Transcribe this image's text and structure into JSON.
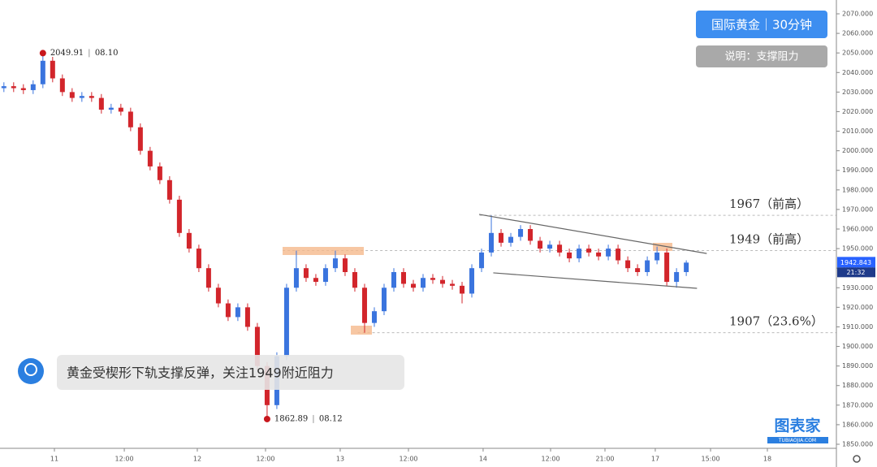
{
  "chart_data": {
    "type": "candlestick",
    "title": "国际黄金｜30分钟",
    "subtitle": "说明：支撑阻力",
    "comment": "黄金受楔形下轨支撑反弹，关注1949附近阻力",
    "watermark": "图表家",
    "watermark_url": "TUBIAOJIA.COM",
    "countdown": "21:32",
    "up_color": "#3a74de",
    "down_color": "#d2252b",
    "x": [
      0,
      1,
      2,
      3,
      4,
      5,
      6,
      7,
      8,
      9,
      10,
      11,
      12,
      13,
      14,
      15,
      16,
      17,
      18,
      19,
      20,
      21,
      22,
      23,
      24,
      25,
      26,
      27,
      28,
      29,
      30,
      31,
      32,
      33,
      34,
      35,
      36,
      37,
      38,
      39,
      40,
      41,
      42,
      43,
      44,
      45,
      46,
      47,
      48,
      49,
      50,
      51,
      52,
      53,
      54,
      55,
      56,
      57,
      58,
      59,
      60,
      61,
      62,
      63,
      64,
      65,
      66,
      67,
      68,
      69,
      70
    ],
    "open": [
      2032,
      2033,
      2032,
      2031,
      2034,
      2046,
      2037,
      2030,
      2027,
      2028,
      2027,
      2021,
      2022,
      2020,
      2012,
      2000,
      1992,
      1985,
      1975,
      1958,
      1950,
      1940,
      1930,
      1922,
      1915,
      1920,
      1910,
      1890,
      1870,
      1895,
      1930,
      1940,
      1935,
      1933,
      1940,
      1945,
      1938,
      1930,
      1912,
      1918,
      1930,
      1938,
      1932,
      1930,
      1935,
      1934,
      1932,
      1931,
      1927,
      1940,
      1948,
      1958,
      1953,
      1956,
      1960,
      1954,
      1950,
      1952,
      1948,
      1945,
      1950,
      1948,
      1946,
      1950,
      1944,
      1940,
      1938,
      1944,
      1948,
      1933,
      1938
    ],
    "high": [
      2035,
      2035,
      2034,
      2036,
      2049.91,
      2048,
      2039,
      2032,
      2030,
      2030,
      2029,
      2024,
      2024,
      2022,
      2014,
      2002,
      1994,
      1987,
      1977,
      1960,
      1952,
      1942,
      1932,
      1924,
      1922,
      1922,
      1912,
      1892,
      1897,
      1932,
      1949,
      1942,
      1937,
      1942,
      1949,
      1947,
      1940,
      1932,
      1920,
      1932,
      1940,
      1940,
      1934,
      1937,
      1937,
      1936,
      1934,
      1933,
      1942,
      1950,
      1967,
      1960,
      1958,
      1962,
      1962,
      1956,
      1954,
      1954,
      1950,
      1952,
      1952,
      1950,
      1952,
      1952,
      1946,
      1942,
      1946,
      1951,
      1950,
      1940,
      1944
    ],
    "low": [
      2030,
      2030,
      2029,
      2029,
      2032,
      2035,
      2028,
      2025,
      2025,
      2025,
      2019,
      2019,
      2018,
      2010,
      1998,
      1990,
      1983,
      1973,
      1956,
      1948,
      1938,
      1928,
      1920,
      1913,
      1913,
      1908,
      1888,
      1862.89,
      1868,
      1893,
      1928,
      1933,
      1931,
      1931,
      1938,
      1936,
      1928,
      1907,
      1910,
      1916,
      1928,
      1930,
      1928,
      1928,
      1932,
      1930,
      1929,
      1922,
      1925,
      1938,
      1946,
      1951,
      1951,
      1954,
      1952,
      1948,
      1948,
      1946,
      1943,
      1943,
      1946,
      1944,
      1944,
      1942,
      1938,
      1936,
      1936,
      1942,
      1931,
      1930,
      1936
    ],
    "close": [
      2033,
      2032,
      2031,
      2034,
      2046,
      2037,
      2030,
      2027,
      2028,
      2027,
      2021,
      2022,
      2020,
      2012,
      2000,
      1992,
      1985,
      1975,
      1958,
      1950,
      1940,
      1930,
      1922,
      1915,
      1920,
      1910,
      1890,
      1870,
      1895,
      1930,
      1940,
      1935,
      1933,
      1940,
      1945,
      1938,
      1930,
      1912,
      1918,
      1930,
      1938,
      1932,
      1930,
      1935,
      1934,
      1932,
      1931,
      1927,
      1940,
      1948,
      1958,
      1953,
      1956,
      1960,
      1954,
      1950,
      1952,
      1948,
      1945,
      1950,
      1948,
      1946,
      1950,
      1944,
      1940,
      1938,
      1944,
      1948,
      1933,
      1938,
      1942.843
    ],
    "xlim": [
      -0.4,
      85.4
    ],
    "xticks": [
      {
        "value": 5.18,
        "label": "11"
      },
      {
        "value": 12.35,
        "label": "12:00"
      },
      {
        "value": 19.84,
        "label": "12"
      },
      {
        "value": 26.84,
        "label": "12:00"
      },
      {
        "value": 34.5,
        "label": "13"
      },
      {
        "value": 41.5,
        "label": "12:00"
      },
      {
        "value": 49.16,
        "label": "14"
      },
      {
        "value": 56.08,
        "label": "12:00"
      },
      {
        "value": 61.66,
        "label": "21:00"
      },
      {
        "value": 66.82,
        "label": "17"
      },
      {
        "value": 72.49,
        "label": "15:00"
      },
      {
        "value": 78.32,
        "label": "18"
      }
    ],
    "ylim": [
      1850,
      2070
    ],
    "yticks": [
      {
        "value": 1850,
        "label": "1850.000"
      },
      {
        "value": 1860,
        "label": "1860.000"
      },
      {
        "value": 1870,
        "label": "1870.000"
      },
      {
        "value": 1880,
        "label": "1880.000"
      },
      {
        "value": 1890,
        "label": "1890.000"
      },
      {
        "value": 1900,
        "label": "1900.000"
      },
      {
        "value": 1910,
        "label": "1910.000"
      },
      {
        "value": 1920,
        "label": "1920.000"
      },
      {
        "value": 1930,
        "label": "1930.000"
      },
      {
        "value": 1940,
        "label": "1940.000"
      },
      {
        "value": 1950,
        "label": "1950.000"
      },
      {
        "value": 1960,
        "label": "1960.000"
      },
      {
        "value": 1970,
        "label": "1970.000"
      },
      {
        "value": 1980,
        "label": "1980.000"
      },
      {
        "value": 1990,
        "label": "1990.000"
      },
      {
        "value": 2000,
        "label": "2000.000"
      },
      {
        "value": 2010,
        "label": "2010.000"
      },
      {
        "value": 2020,
        "label": "2020.000"
      },
      {
        "value": 2030,
        "label": "2030.000"
      },
      {
        "value": 2040,
        "label": "2040.000"
      },
      {
        "value": 2050,
        "label": "2050.000"
      },
      {
        "value": 2060,
        "label": "2060.000"
      },
      {
        "value": 2070,
        "label": "2070.000"
      }
    ],
    "extremes": [
      {
        "index": 4,
        "date": "08.10"
      },
      {
        "index": 27,
        "date": "08.12"
      }
    ],
    "levels": [
      {
        "value": 1967,
        "label": "1967（前高）",
        "from": 48.8
      },
      {
        "value": 1949,
        "label": "1949（前高）",
        "from": 28.6
      },
      {
        "value": 1907,
        "label": "1907（23.6%）",
        "from": 36.3
      }
    ],
    "trendlines": [
      {
        "x": [
          48.75,
          72.1
        ],
        "y": [
          1967.5,
          1947.5
        ]
      },
      {
        "x": [
          50.2,
          71.1
        ],
        "y": [
          1937.6,
          1929.7
        ]
      }
    ]
  }
}
